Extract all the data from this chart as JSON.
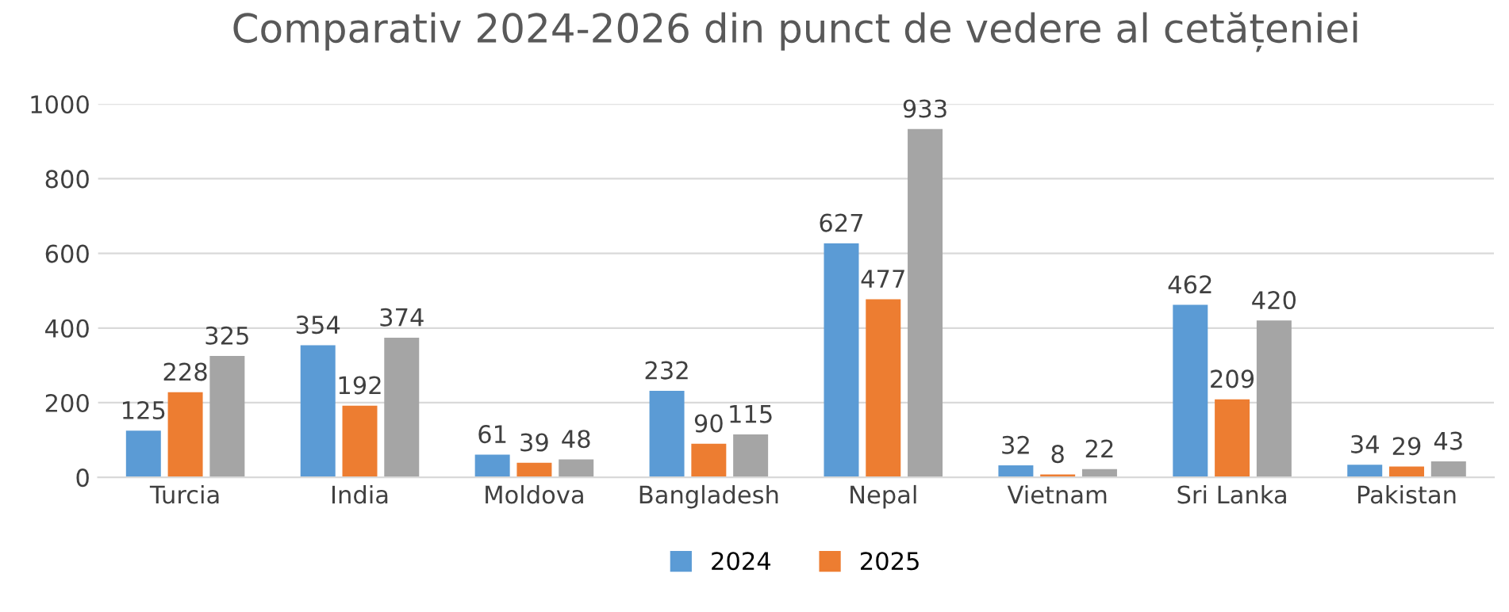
{
  "chart_data": {
    "type": "bar",
    "title": "Comparativ 2024-2026 din punct de vedere al cetățeniei",
    "categories": [
      "Turcia",
      "India",
      "Moldova",
      "Bangladesh",
      "Nepal",
      "Vietnam",
      "Sri Lanka",
      "Pakistan"
    ],
    "series": [
      {
        "name": "2024",
        "color": "#5b9bd5",
        "values": [
          125,
          354,
          61,
          232,
          627,
          32,
          462,
          34
        ]
      },
      {
        "name": "2025",
        "color": "#ed7d31",
        "values": [
          228,
          192,
          39,
          90,
          477,
          8,
          209,
          29
        ]
      },
      {
        "color": "#a5a5a5",
        "values": [
          325,
          374,
          48,
          115,
          933,
          22,
          420,
          43
        ]
      }
    ],
    "ylim": [
      0,
      1000
    ],
    "yticks": [
      0,
      200,
      400,
      600,
      800,
      1000
    ],
    "grid": "y",
    "legend": "bottom",
    "data_labels": true
  }
}
